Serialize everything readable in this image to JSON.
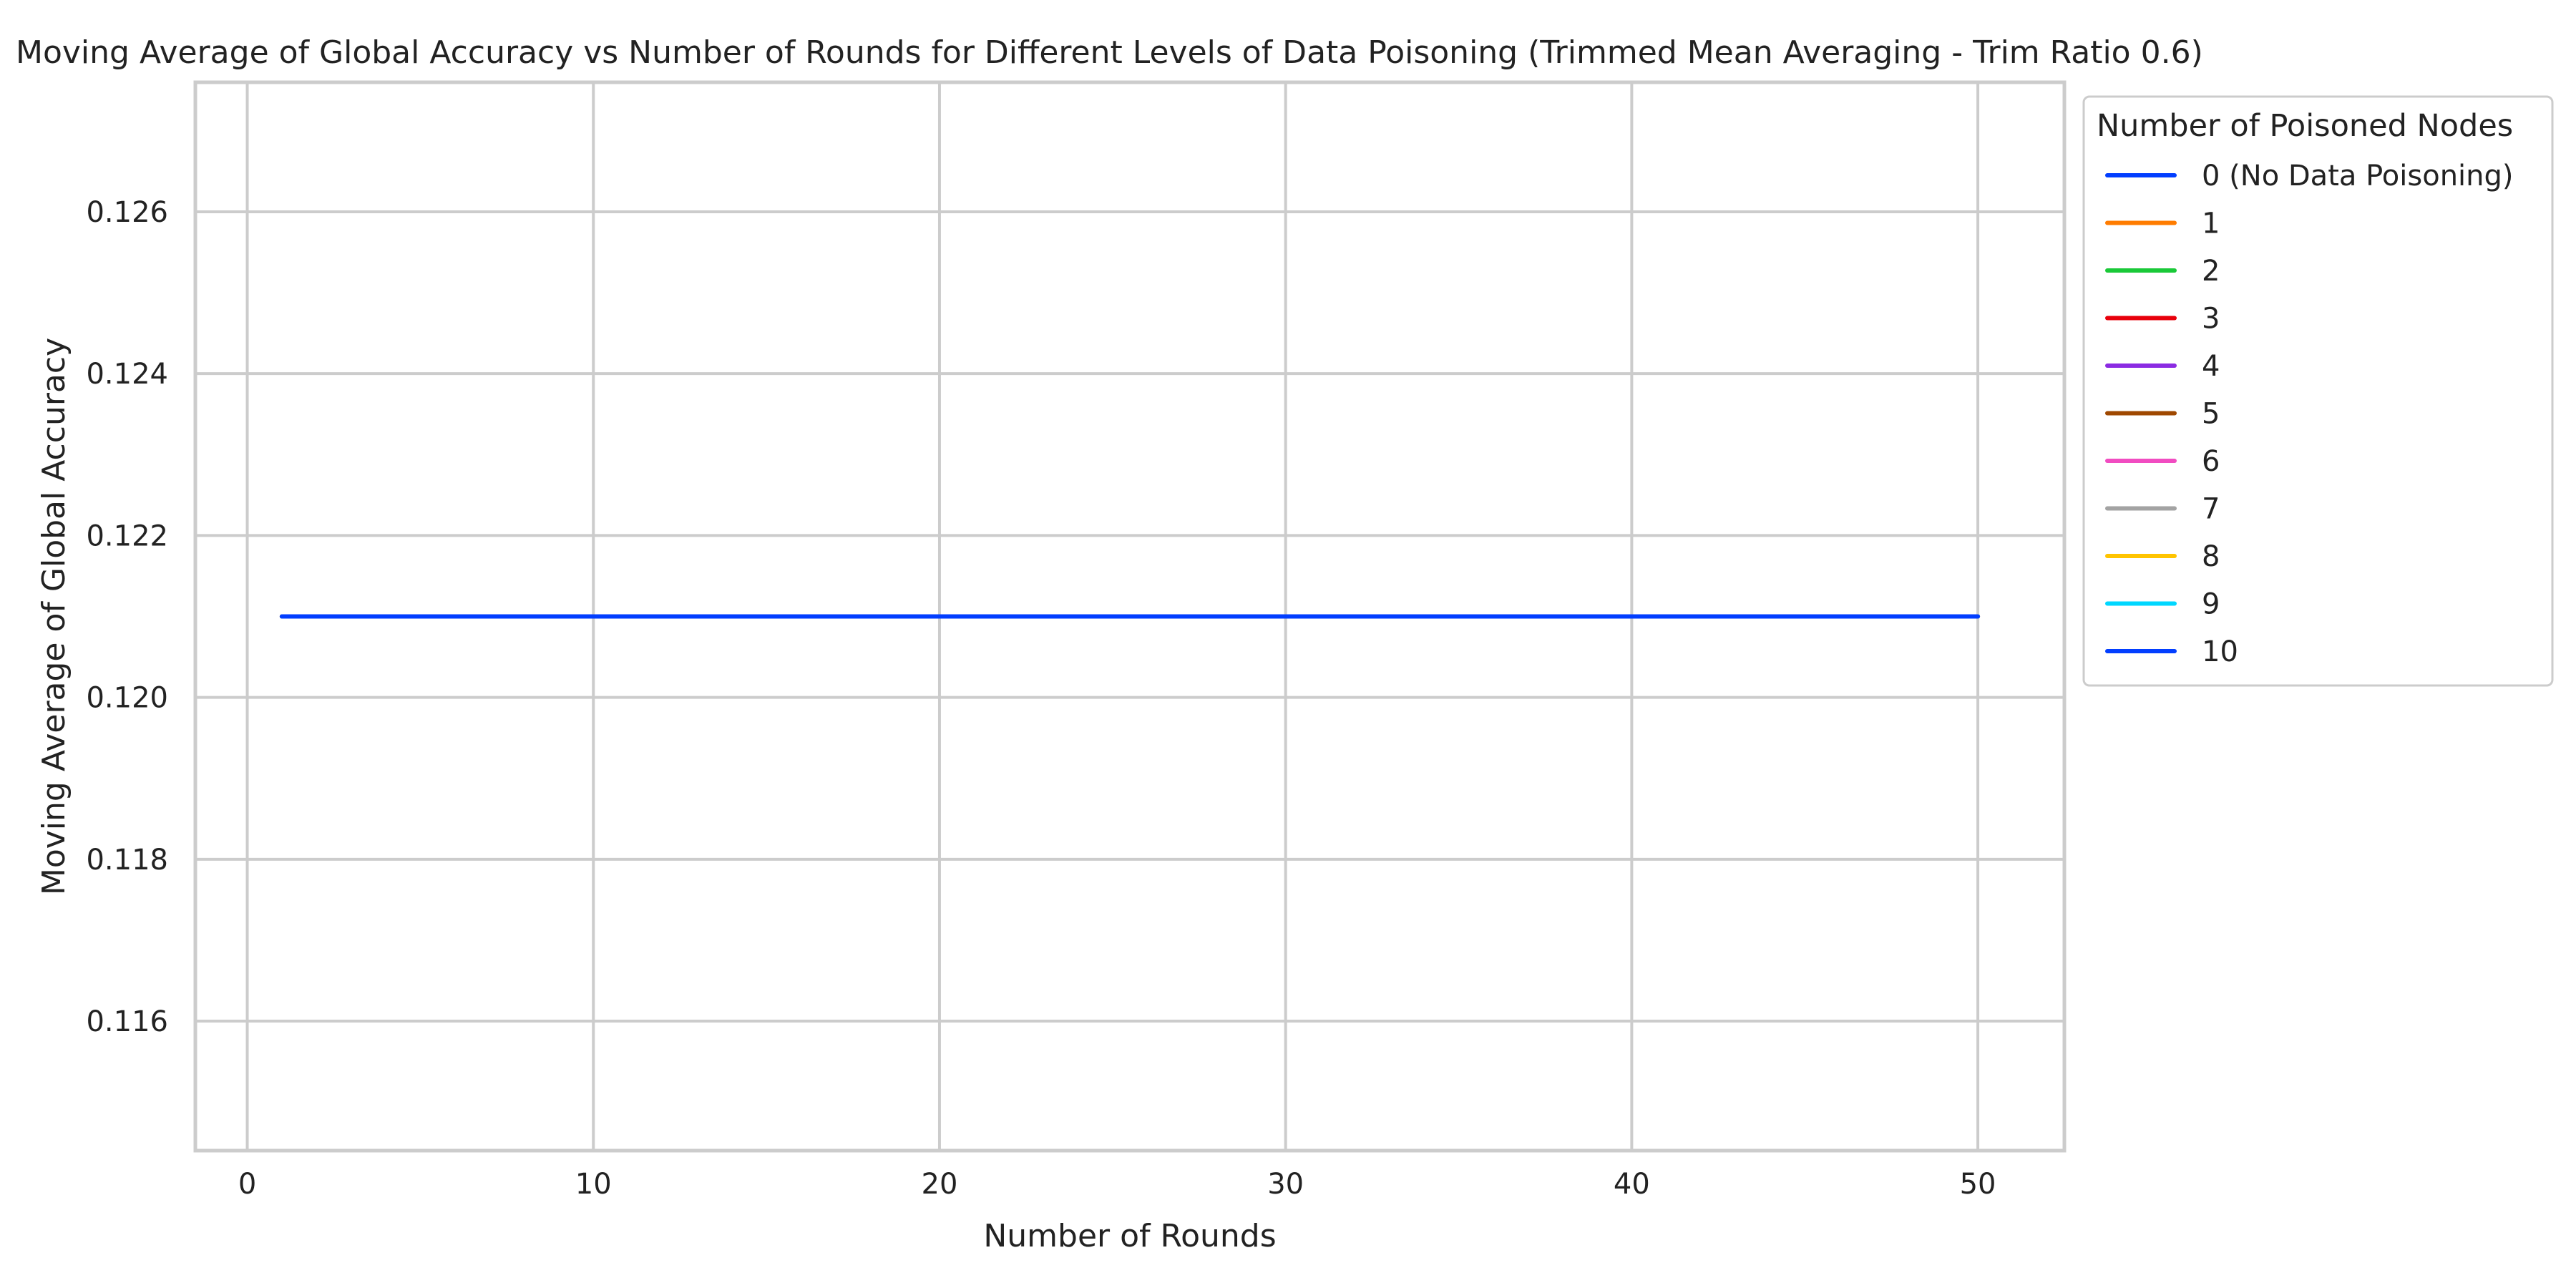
{
  "chart_data": {
    "type": "line",
    "title": "Moving Average of Global Accuracy vs Number of Rounds for Different Levels of Data Poisoning (Trimmed Mean Averaging - Trim Ratio 0.6)",
    "xlabel": "Number of Rounds",
    "ylabel": "Moving Average of Global Accuracy",
    "xlim": [
      -1.5,
      52.5
    ],
    "ylim": [
      0.1144,
      0.1276
    ],
    "x_ticks": [
      0,
      10,
      20,
      30,
      40,
      50
    ],
    "x_tick_labels": [
      "0",
      "10",
      "20",
      "30",
      "40",
      "50"
    ],
    "y_ticks": [
      0.116,
      0.118,
      0.12,
      0.122,
      0.124,
      0.126
    ],
    "y_tick_labels": [
      "0.116",
      "0.118",
      "0.120",
      "0.122",
      "0.124",
      "0.126"
    ],
    "grid": true,
    "legend": {
      "title": "Number of Poisoned Nodes",
      "placement": "outside-right-top"
    },
    "series": [
      {
        "name": "0 (No Data Poisoning)",
        "color": "#023eff",
        "x": [
          1,
          50
        ],
        "y": [
          0.121,
          0.121
        ]
      },
      {
        "name": "1",
        "color": "#ff7c00",
        "x": [
          1,
          50
        ],
        "y": [
          0.121,
          0.121
        ]
      },
      {
        "name": "2",
        "color": "#1ac938",
        "x": [
          1,
          50
        ],
        "y": [
          0.121,
          0.121
        ]
      },
      {
        "name": "3",
        "color": "#e8000b",
        "x": [
          1,
          50
        ],
        "y": [
          0.121,
          0.121
        ]
      },
      {
        "name": "4",
        "color": "#8b2be2",
        "x": [
          1,
          50
        ],
        "y": [
          0.121,
          0.121
        ]
      },
      {
        "name": "5",
        "color": "#9f4800",
        "x": [
          1,
          50
        ],
        "y": [
          0.121,
          0.121
        ]
      },
      {
        "name": "6",
        "color": "#f14cc1",
        "x": [
          1,
          50
        ],
        "y": [
          0.121,
          0.121
        ]
      },
      {
        "name": "7",
        "color": "#a3a3a3",
        "x": [
          1,
          50
        ],
        "y": [
          0.121,
          0.121
        ]
      },
      {
        "name": "8",
        "color": "#ffc400",
        "x": [
          1,
          50
        ],
        "y": [
          0.121,
          0.121
        ]
      },
      {
        "name": "9",
        "color": "#00d7ff",
        "x": [
          1,
          50
        ],
        "y": [
          0.121,
          0.121
        ]
      },
      {
        "name": "10",
        "color": "#023eff",
        "x": [
          1,
          50
        ],
        "y": [
          0.121,
          0.121
        ]
      }
    ]
  }
}
